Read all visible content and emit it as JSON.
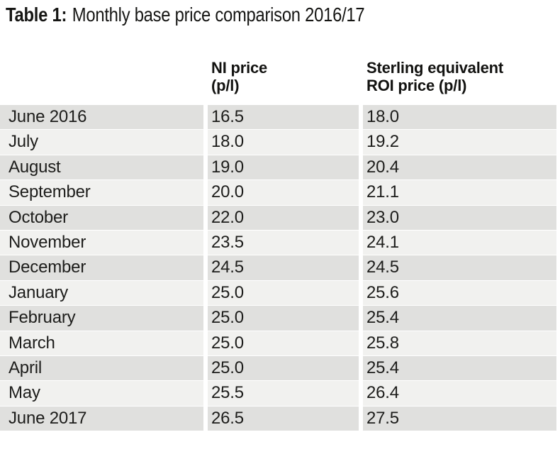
{
  "title": {
    "label": "Table 1:",
    "text": "Monthly base price comparison 2016/17"
  },
  "table": {
    "headers": {
      "month": "",
      "ni": "NI price\n(p/l)",
      "roi": "Sterling equivalent\nROI price (p/l)"
    },
    "rows": [
      {
        "month": "June 2016",
        "ni": "16.5",
        "roi": "18.0"
      },
      {
        "month": "July",
        "ni": "18.0",
        "roi": "19.2"
      },
      {
        "month": "August",
        "ni": "19.0",
        "roi": "20.4"
      },
      {
        "month": "September",
        "ni": "20.0",
        "roi": "21.1"
      },
      {
        "month": "October",
        "ni": "22.0",
        "roi": "23.0"
      },
      {
        "month": "November",
        "ni": "23.5",
        "roi": "24.1"
      },
      {
        "month": "December",
        "ni": "24.5",
        "roi": "24.5"
      },
      {
        "month": "January",
        "ni": "25.0",
        "roi": "25.6"
      },
      {
        "month": "February",
        "ni": "25.0",
        "roi": "25.4"
      },
      {
        "month": "March",
        "ni": "25.0",
        "roi": "25.8"
      },
      {
        "month": "April",
        "ni": "25.0",
        "roi": "25.4"
      },
      {
        "month": "May",
        "ni": "25.5",
        "roi": "26.4"
      },
      {
        "month": "June 2017",
        "ni": "26.5",
        "roi": "27.5"
      }
    ]
  },
  "colors": {
    "row_dark": "#e0e0de",
    "row_light": "#f1f1ef",
    "text": "#1d1d1b"
  },
  "chart_data": {
    "type": "table",
    "title": "Table 1: Monthly base price comparison 2016/17",
    "columns": [
      "",
      "NI price (p/l)",
      "Sterling equivalent ROI price (p/l)"
    ],
    "rows": [
      [
        "June 2016",
        16.5,
        18.0
      ],
      [
        "July",
        18.0,
        19.2
      ],
      [
        "August",
        19.0,
        20.4
      ],
      [
        "September",
        20.0,
        21.1
      ],
      [
        "October",
        22.0,
        23.0
      ],
      [
        "November",
        23.5,
        24.1
      ],
      [
        "December",
        24.5,
        24.5
      ],
      [
        "January",
        25.0,
        25.6
      ],
      [
        "February",
        25.0,
        25.4
      ],
      [
        "March",
        25.0,
        25.8
      ],
      [
        "April",
        25.0,
        25.4
      ],
      [
        "May",
        25.5,
        26.4
      ],
      [
        "June 2017",
        26.5,
        27.5
      ]
    ]
  }
}
